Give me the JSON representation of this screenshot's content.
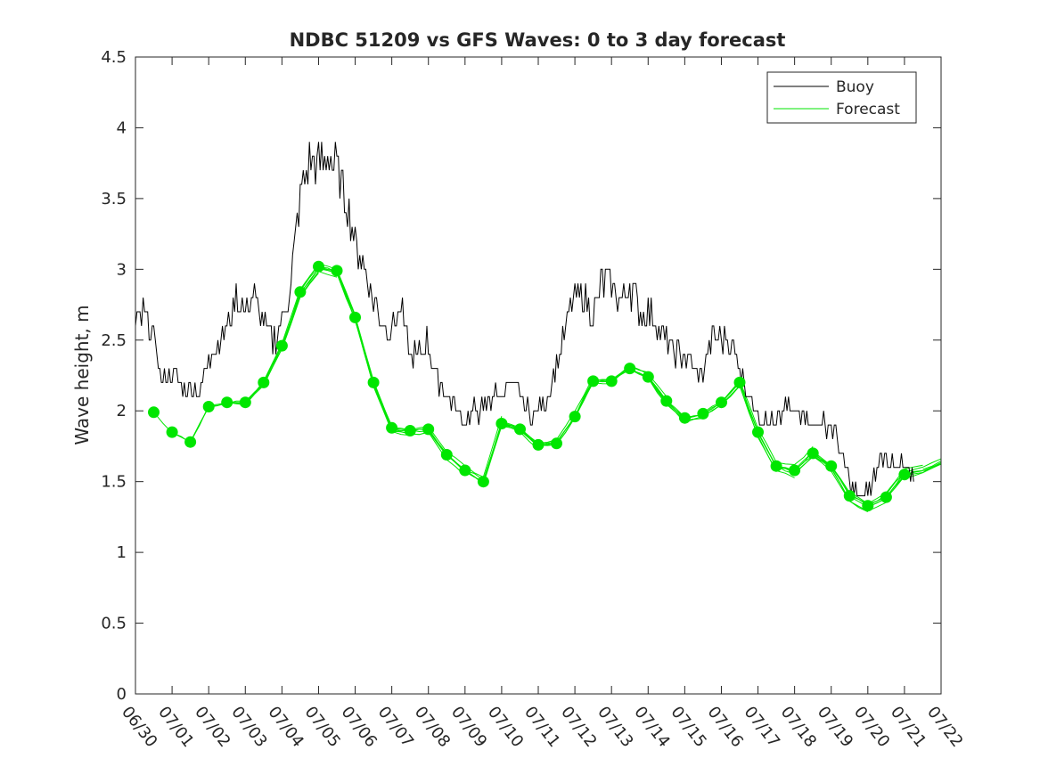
{
  "chart_data": {
    "type": "line",
    "title": "NDBC 51209 vs GFS Waves: 0 to 3 day forecast",
    "xlabel": "",
    "ylabel": "Wave height, m",
    "xlim": [
      "06/30",
      "07/22"
    ],
    "ylim": [
      0,
      4.5
    ],
    "x_tick_labels": [
      "06/30",
      "07/01",
      "07/02",
      "07/03",
      "07/04",
      "07/05",
      "07/06",
      "07/07",
      "07/08",
      "07/09",
      "07/10",
      "07/11",
      "07/12",
      "07/13",
      "07/14",
      "07/15",
      "07/16",
      "07/17",
      "07/18",
      "07/19",
      "07/20",
      "07/21",
      "07/22"
    ],
    "y_ticks": [
      0,
      0.5,
      1,
      1.5,
      2,
      2.5,
      3,
      3.5,
      4,
      4.5
    ],
    "y_tick_labels": [
      "0",
      "0.5",
      "1",
      "1.5",
      "2",
      "2.5",
      "3",
      "3.5",
      "4",
      "4.5"
    ],
    "grid": false,
    "legend_position": "top-right",
    "legend": [
      "Buoy",
      "Forecast"
    ],
    "colors": {
      "buoy": "#000000",
      "forecast": "#00e600",
      "axes": "#262626"
    },
    "series": [
      {
        "name": "Buoy",
        "x_days": [
          0,
          0.25,
          0.5,
          0.75,
          1,
          1.25,
          1.5,
          1.75,
          2,
          2.25,
          2.5,
          2.75,
          3,
          3.25,
          3.5,
          3.75,
          4,
          4.25,
          4.5,
          4.75,
          5,
          5.25,
          5.5,
          5.75,
          6,
          6.25,
          6.5,
          6.75,
          7,
          7.25,
          7.5,
          7.75,
          8,
          8.25,
          8.5,
          8.75,
          9,
          9.25,
          9.5,
          9.75,
          10,
          10.25,
          10.5,
          10.75,
          11,
          11.25,
          11.5,
          11.75,
          12,
          12.25,
          12.5,
          12.75,
          13,
          13.25,
          13.5,
          13.75,
          14,
          14.25,
          14.5,
          14.75,
          15,
          15.25,
          15.5,
          15.75,
          16,
          16.25,
          16.5,
          16.75,
          17,
          17.25,
          17.5,
          17.75,
          18,
          18.25,
          18.5,
          18.75,
          19,
          19.25,
          19.5,
          19.75,
          20,
          20.25,
          20.5,
          20.75,
          21,
          21.25
        ],
        "values": [
          2.6,
          2.7,
          2.5,
          2.2,
          2.3,
          2.2,
          2.2,
          2.1,
          2.4,
          2.5,
          2.6,
          2.8,
          2.7,
          2.8,
          2.6,
          2.5,
          2.6,
          2.9,
          3.5,
          3.8,
          3.7,
          3.8,
          3.7,
          3.5,
          3.2,
          3.0,
          2.8,
          2.6,
          2.6,
          2.7,
          2.4,
          2.4,
          2.5,
          2.2,
          2.1,
          2.0,
          1.9,
          2.0,
          2.0,
          2.1,
          2.1,
          2.2,
          2.1,
          2.0,
          2.0,
          2.1,
          2.3,
          2.6,
          2.8,
          2.8,
          2.7,
          2.9,
          2.9,
          2.8,
          2.9,
          2.7,
          2.7,
          2.6,
          2.5,
          2.4,
          2.4,
          2.3,
          2.3,
          2.5,
          2.5,
          2.5,
          2.3,
          2.1,
          2.0,
          1.9,
          1.9,
          2.0,
          2.0,
          2.0,
          1.9,
          1.9,
          1.9,
          1.7,
          1.5,
          1.4,
          1.4,
          1.6,
          1.7,
          1.6,
          1.6,
          1.55
        ]
      },
      {
        "name": "Forecast",
        "x_days": [
          0.5,
          1,
          1.5,
          2,
          2.5,
          3,
          3.5,
          4,
          4.5,
          5,
          5.5,
          6,
          6.5,
          7,
          7.5,
          8,
          8.5,
          9,
          9.5,
          10,
          10.5,
          11,
          11.5,
          12,
          12.5,
          13,
          13.5,
          14,
          14.5,
          15,
          15.5,
          16,
          16.5,
          17,
          17.5,
          18,
          18.5,
          19,
          19.5,
          20,
          20.5,
          21,
          21.5,
          22
        ],
        "values": [
          1.99,
          1.85,
          1.78,
          2.03,
          2.06,
          2.06,
          2.2,
          2.46,
          2.84,
          3.02,
          2.99,
          2.66,
          2.2,
          1.88,
          1.86,
          1.87,
          1.69,
          1.58,
          1.5,
          1.91,
          1.87,
          1.76,
          1.77,
          1.96,
          2.21,
          2.21,
          2.3,
          2.24,
          2.07,
          1.95,
          1.98,
          2.06,
          2.2,
          1.85,
          1.61,
          1.58,
          1.7,
          1.61,
          1.4,
          1.33,
          1.39,
          1.55,
          1.58,
          1.64
        ]
      }
    ]
  }
}
